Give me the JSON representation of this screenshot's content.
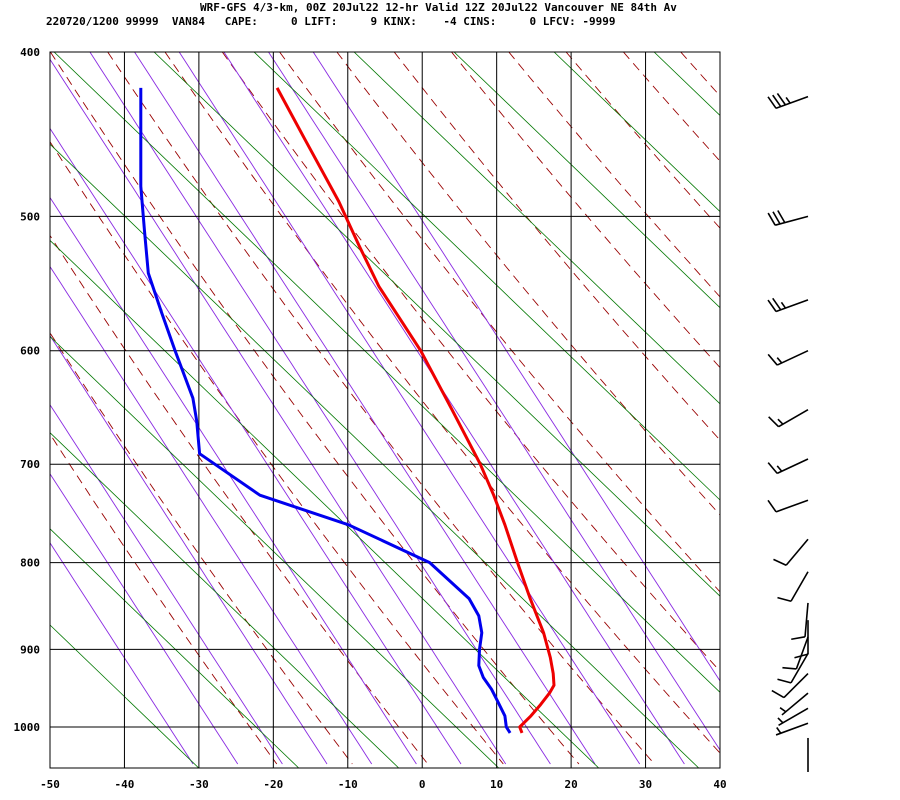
{
  "header": {
    "line1": "WRF-GFS 4/3-km, 00Z 20Jul22 12-hr Valid 12Z 20Jul22 Vancouver NE 84th Av",
    "line2": "220720/1200 99999  VAN84   CAPE:     0 LIFT:     9 KINX:    -4 CINS:     0 LFCV: -9999"
  },
  "chart_data": {
    "type": "skew-t",
    "title": "WRF-GFS 4/3-km, 00Z 20Jul22 12-hr Valid 12Z 20Jul22 Vancouver NE 84th Av",
    "xlabel": "",
    "ylabel": "",
    "x_ticks": [
      "-50",
      "-40",
      "-30",
      "-20",
      "-10",
      "0",
      "10",
      "20",
      "30",
      "40"
    ],
    "y_ticks": [
      "400",
      "500",
      "600",
      "700",
      "800",
      "900",
      "1000"
    ],
    "xlim": [
      -50,
      40
    ],
    "pressure_range_hPa": [
      400,
      1035
    ],
    "grid": true,
    "colors": {
      "temperature": "#ee0000",
      "dewpoint": "#0000ee",
      "dry_adiabat": "#990000",
      "moist_adiabat": "#8a2be2",
      "isotherm_skewed": "#007700",
      "grid": "#000000"
    },
    "series": [
      {
        "name": "",
        "variable": "temperature",
        "points": [
          [
            420,
            -19.5
          ],
          [
            450,
            -15.8
          ],
          [
            490,
            -11.2
          ],
          [
            520,
            -8.5
          ],
          [
            550,
            -5.8
          ],
          [
            600,
            -0.2
          ],
          [
            650,
            4.0
          ],
          [
            700,
            7.8
          ],
          [
            730,
            9.6
          ],
          [
            760,
            11.1
          ],
          [
            800,
            12.8
          ],
          [
            840,
            14.5
          ],
          [
            880,
            16.3
          ],
          [
            910,
            17.2
          ],
          [
            930,
            17.6
          ],
          [
            945,
            17.7
          ],
          [
            955,
            17.1
          ],
          [
            970,
            15.9
          ],
          [
            985,
            14.6
          ],
          [
            1000,
            13.1
          ],
          [
            1008,
            13.4
          ]
        ]
      },
      {
        "name": "",
        "variable": "dewpoint",
        "points": [
          [
            420,
            -37.8
          ],
          [
            450,
            -37.8
          ],
          [
            480,
            -37.8
          ],
          [
            510,
            -37.3
          ],
          [
            540,
            -36.8
          ],
          [
            570,
            -35.0
          ],
          [
            600,
            -33.2
          ],
          [
            640,
            -30.8
          ],
          [
            660,
            -30.3
          ],
          [
            690,
            -29.9
          ],
          [
            730,
            -21.8
          ],
          [
            760,
            -9.9
          ],
          [
            800,
            1.0
          ],
          [
            840,
            6.3
          ],
          [
            860,
            7.6
          ],
          [
            880,
            8.0
          ],
          [
            900,
            7.7
          ],
          [
            920,
            7.6
          ],
          [
            935,
            8.2
          ],
          [
            950,
            9.3
          ],
          [
            965,
            10.1
          ],
          [
            985,
            11.1
          ],
          [
            1000,
            11.3
          ],
          [
            1008,
            11.8
          ]
        ]
      }
    ],
    "wind_barbs": [
      {
        "p": 425,
        "dir": 250,
        "kt": 35
      },
      {
        "p": 500,
        "dir": 255,
        "kt": 30
      },
      {
        "p": 560,
        "dir": 250,
        "kt": 25
      },
      {
        "p": 600,
        "dir": 245,
        "kt": 15
      },
      {
        "p": 650,
        "dir": 240,
        "kt": 15
      },
      {
        "p": 695,
        "dir": 245,
        "kt": 15
      },
      {
        "p": 735,
        "dir": 250,
        "kt": 10
      },
      {
        "p": 775,
        "dir": 220,
        "kt": 10
      },
      {
        "p": 810,
        "dir": 210,
        "kt": 10
      },
      {
        "p": 845,
        "dir": 185,
        "kt": 10
      },
      {
        "p": 865,
        "dir": 180,
        "kt": 10
      },
      {
        "p": 885,
        "dir": 200,
        "kt": 10
      },
      {
        "p": 905,
        "dir": 210,
        "kt": 10
      },
      {
        "p": 930,
        "dir": 225,
        "kt": 10
      },
      {
        "p": 955,
        "dir": 230,
        "kt": 5
      },
      {
        "p": 975,
        "dir": 240,
        "kt": 5
      },
      {
        "p": 995,
        "dir": 250,
        "kt": 5
      },
      {
        "p": 1015,
        "dir": 180,
        "kt": 0
      }
    ]
  }
}
